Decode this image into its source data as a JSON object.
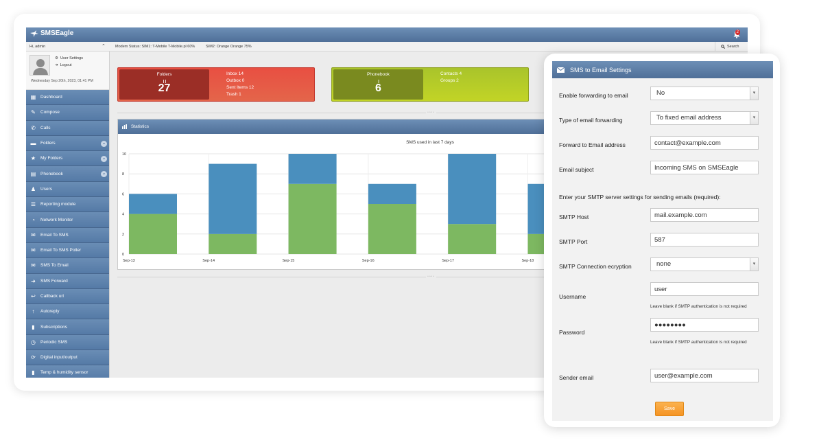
{
  "app": {
    "title": "SMSEagle",
    "notification_count": "2"
  },
  "status": {
    "user": "Hi, admin",
    "modem": "Modem Status: SIM1: T-Mobile T-Mobile.pl 60%",
    "sim2": "SIM2: Orange Orange 75%",
    "search_label": "Search"
  },
  "user_box": {
    "settings": "User Settings",
    "logout": "Logout",
    "date": "Wednesday Sep 20th, 2023, 01:41 PM"
  },
  "sidebar": {
    "items": [
      {
        "label": "Dashboard",
        "icon": "dashboard-icon"
      },
      {
        "label": "Compose",
        "icon": "pencil-icon"
      },
      {
        "label": "Calls",
        "icon": "phone-icon"
      },
      {
        "label": "Folders",
        "icon": "folder-icon",
        "expandable": true
      },
      {
        "label": "My Folders",
        "icon": "star-icon",
        "expandable": true
      },
      {
        "label": "Phonebook",
        "icon": "book-icon",
        "expandable": true
      },
      {
        "label": "Users",
        "icon": "users-icon"
      },
      {
        "label": "Reporting module",
        "icon": "list-icon"
      },
      {
        "label": "Network Monitor",
        "icon": "gauge-icon"
      },
      {
        "label": "Email To SMS",
        "icon": "envelope-icon"
      },
      {
        "label": "Email To SMS Poller",
        "icon": "envelope-icon"
      },
      {
        "label": "SMS To Email",
        "icon": "envelope-icon"
      },
      {
        "label": "SMS Forward",
        "icon": "arrow-right-icon"
      },
      {
        "label": "Callback url",
        "icon": "callback-icon"
      },
      {
        "label": "Autoreply",
        "icon": "arrow-up-icon"
      },
      {
        "label": "Subscriptions",
        "icon": "bookmark-icon"
      },
      {
        "label": "Periodic SMS",
        "icon": "clock-icon"
      },
      {
        "label": "Digital input/output",
        "icon": "refresh-icon"
      },
      {
        "label": "Temp & humidity sensor",
        "icon": "bar-chart-icon"
      }
    ]
  },
  "tiles": {
    "folders": {
      "title": "Folders",
      "count": "27",
      "lines": [
        "Inbox 14",
        "Outbox 0",
        "Sent Items 12",
        "Trash 1"
      ],
      "color": "#e5533f"
    },
    "phonebook": {
      "title": "Phonebook",
      "count": "6",
      "lines": [
        "Contacts 4",
        "Groups 2"
      ],
      "color": "#b3c92a"
    }
  },
  "stats": {
    "header": "Statistics"
  },
  "chart_data": {
    "type": "bar",
    "title": "SMS used in last 7 days",
    "categories": [
      "Sep-13",
      "Sep-14",
      "Sep-15",
      "Sep-16",
      "Sep-17",
      "Sep-18"
    ],
    "series": [
      {
        "values": [
          4,
          2,
          7,
          5,
          3,
          2
        ],
        "color": "#7db861"
      },
      {
        "values": [
          2,
          7,
          3,
          2,
          7,
          5
        ],
        "color": "#4a8fbe"
      }
    ],
    "ylim": [
      0,
      10
    ],
    "yticks": [
      "0",
      "2",
      "4",
      "6",
      "8",
      "10"
    ],
    "grid": true
  },
  "settings": {
    "title": "SMS to Email Settings",
    "enable_label": "Enable forwarding to email",
    "enable_value": "No",
    "type_label": "Type of email forwarding",
    "type_value": "To fixed email address",
    "forward_label": "Forward to Email address",
    "forward_value": "contact@example.com",
    "subject_label": "Email subject",
    "subject_value": "Incoming SMS on SMSEagle",
    "smtp_note": "Enter your SMTP server settings for sending emails (required):",
    "host_label": "SMTP Host",
    "host_value": "mail.example.com",
    "port_label": "SMTP Port",
    "port_value": "587",
    "enc_label": "SMTP Connection ecryption",
    "enc_value": "none",
    "username_label": "Username",
    "username_value": "user",
    "username_hint": "Leave blank if SMTP authentication is not required",
    "password_label": "Password",
    "password_value": "●●●●●●●●",
    "password_hint": "Leave blank if SMTP authentication is not required",
    "sender_label": "Sender email",
    "sender_value": "user@example.com",
    "save_label": "Save"
  }
}
